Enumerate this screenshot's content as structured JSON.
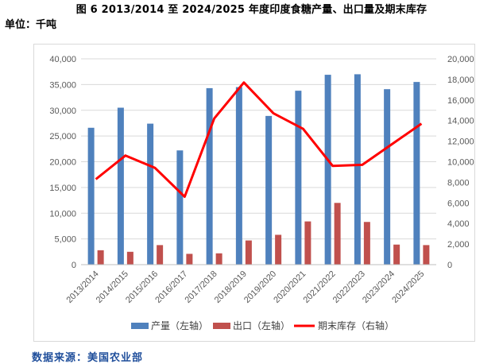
{
  "title": "图 6   2013/2014 至 2024/2025 年度印度食糖产量、出口量及期末库存",
  "unit_label": "单位：千吨",
  "source": "数据来源：美国农业部",
  "colors": {
    "production": "#4f81bd",
    "export": "#c0504d",
    "stock": "#ff0000",
    "grid": "#d9d9d9",
    "axis_text": "#595959"
  },
  "chart_data": {
    "type": "bar",
    "categories": [
      "2013/2014",
      "2014/2015",
      "2015/2016",
      "2016/2017",
      "2017/2018",
      "2018/2019",
      "2019/2020",
      "2020/2021",
      "2021/2022",
      "2022/2023",
      "2023/2024",
      "2024/2025"
    ],
    "series": [
      {
        "name": "产量（左轴）",
        "type": "bar",
        "axis": "left",
        "values": [
          26600,
          30500,
          27400,
          22200,
          34300,
          34500,
          28900,
          33800,
          36900,
          37000,
          34100,
          35500
        ]
      },
      {
        "name": "出口（左轴）",
        "type": "bar",
        "axis": "left",
        "values": [
          2800,
          2500,
          3800,
          2100,
          2200,
          4700,
          5800,
          8400,
          12000,
          8300,
          3900,
          3800
        ]
      },
      {
        "name": "期末库存（右轴）",
        "type": "line",
        "axis": "right",
        "values": [
          8300,
          10600,
          9400,
          6600,
          14200,
          17700,
          14700,
          13200,
          9600,
          9700,
          11700,
          13700
        ]
      }
    ],
    "y_left": {
      "min": 0,
      "max": 40000,
      "step": 5000,
      "tick_labels": [
        "0",
        "5,000",
        "10,000",
        "15,000",
        "20,000",
        "25,000",
        "30,000",
        "35,000",
        "40,000"
      ]
    },
    "y_right": {
      "min": 0,
      "max": 20000,
      "step": 2000,
      "tick_labels": [
        "0",
        "2,000",
        "4,000",
        "6,000",
        "8,000",
        "10,000",
        "12,000",
        "14,000",
        "16,000",
        "18,000",
        "20,000"
      ]
    },
    "grid": true,
    "legend": "bottom"
  }
}
